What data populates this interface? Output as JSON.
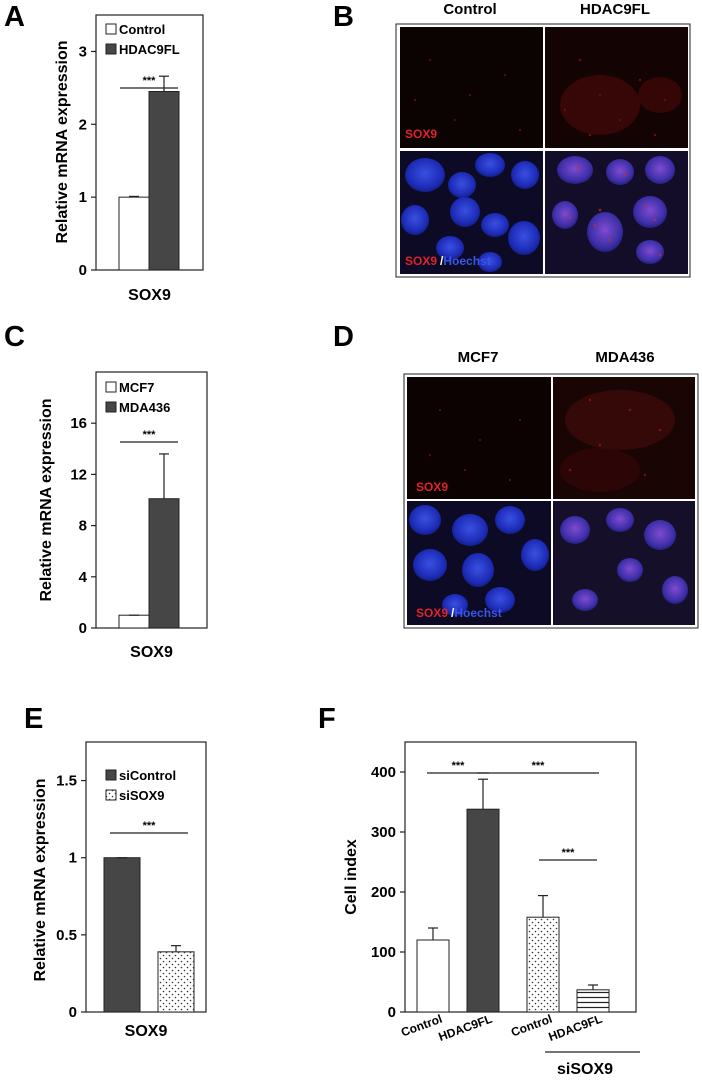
{
  "panels": {
    "A": "A",
    "B": "B",
    "C": "C",
    "D": "D",
    "E": "E",
    "F": "F"
  },
  "colors": {
    "dark": "#464646",
    "white": "#ffffff",
    "stain_red": "#e0232a",
    "stain_blue": "#3a55e8"
  },
  "chart_data": [
    {
      "panel": "A",
      "type": "bar",
      "categories": [
        "Control",
        "HDAC9FL"
      ],
      "values": [
        1.0,
        2.45
      ],
      "errors": [
        0.01,
        0.21
      ],
      "fills": [
        "white",
        "dark"
      ],
      "legend": [
        "Control",
        "HDAC9FL"
      ],
      "ylabel": "Relative mRNA expression",
      "xlabel": "SOX9",
      "ylim": [
        0,
        3.5
      ],
      "yticks": [
        0,
        1,
        2,
        3
      ],
      "significance": [
        {
          "from": 0,
          "to": 1,
          "label": "***"
        }
      ]
    },
    {
      "panel": "C",
      "type": "bar",
      "categories": [
        "MCF7",
        "MDA436"
      ],
      "values": [
        1.0,
        10.1
      ],
      "errors": [
        0,
        3.5
      ],
      "fills": [
        "white",
        "dark"
      ],
      "legend": [
        "MCF7",
        "MDA436"
      ],
      "ylabel": "Relative mRNA expression",
      "xlabel": "SOX9",
      "ylim": [
        0,
        20
      ],
      "yticks": [
        0,
        4,
        8,
        12,
        16
      ],
      "significance": [
        {
          "from": 0,
          "to": 1,
          "label": "***"
        }
      ]
    },
    {
      "panel": "E",
      "type": "bar",
      "categories": [
        "siControl",
        "siSOX9"
      ],
      "values": [
        1.0,
        0.39
      ],
      "errors": [
        0,
        0.04
      ],
      "fills": [
        "dark",
        "dots"
      ],
      "legend": [
        "siControl",
        "siSOX9"
      ],
      "ylabel": "Relative mRNA expression",
      "xlabel": "SOX9",
      "ylim": [
        0,
        1.75
      ],
      "yticks": [
        0,
        0.5,
        1,
        1.5
      ],
      "significance": [
        {
          "from": 0,
          "to": 1,
          "label": "***"
        }
      ]
    },
    {
      "panel": "F",
      "type": "bar",
      "categories": [
        "Control",
        "HDAC9FL",
        "Control",
        "HDAC9FL"
      ],
      "values": [
        120,
        338,
        158,
        37
      ],
      "errors": [
        20,
        50,
        36,
        8
      ],
      "fills": [
        "white",
        "dark",
        "dots",
        "stripes"
      ],
      "ylabel": "Cell index",
      "group_label": "siSOX9",
      "ylim": [
        0,
        450
      ],
      "yticks": [
        0,
        100,
        200,
        300,
        400
      ],
      "significance": [
        {
          "from": 0,
          "to": 1,
          "label": "***"
        },
        {
          "from": 1,
          "to": 3,
          "label": "***"
        },
        {
          "from": 2,
          "to": 3,
          "label": "***"
        }
      ]
    }
  ],
  "micrographs": {
    "B": {
      "columns": [
        "Control",
        "HDAC9FL"
      ],
      "rows": [
        {
          "marker": "SOX9"
        },
        {
          "marker": "SOX9",
          "separator": "/",
          "counterstain": "Hoechst"
        }
      ]
    },
    "D": {
      "columns": [
        "MCF7",
        "MDA436"
      ],
      "rows": [
        {
          "marker": "SOX9"
        },
        {
          "marker": "SOX9",
          "separator": "/",
          "counterstain": "Hoechst"
        }
      ]
    }
  }
}
